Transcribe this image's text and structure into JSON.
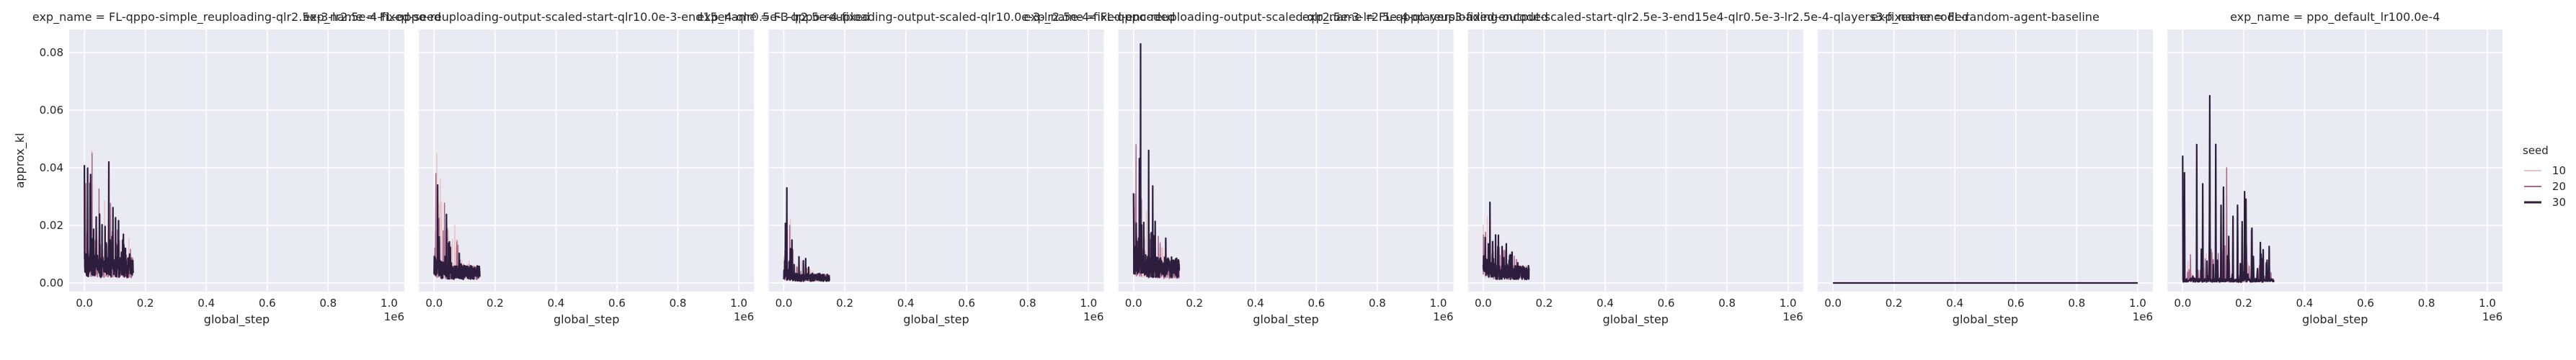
{
  "figure": {
    "ylabel": "approx_kl",
    "xlabel": "global_step",
    "x_offset_label": "1e6",
    "background": "#eaeaf2",
    "grid_color": "#ffffff"
  },
  "legend": {
    "title": "seed",
    "placement": "right",
    "entries": [
      {
        "label": "10",
        "color": "#e8c4c6"
      },
      {
        "label": "20",
        "color": "#a66a8f"
      },
      {
        "label": "30",
        "color": "#2d1e3e"
      }
    ]
  },
  "chart_data": [
    {
      "type": "line",
      "title": "exp_name = FL-qppo-simple_reuploading-qlr2.5e-3-lr2.5e-4-fixed-seed",
      "xlim": [
        -0.05,
        1.05
      ],
      "ylim": [
        -0.003,
        0.088
      ],
      "yticks": [
        "0.00",
        "0.02",
        "0.04",
        "0.06",
        "0.08"
      ],
      "xticks": [
        "0.0",
        "0.2",
        "0.4",
        "0.6",
        "0.8",
        "1.0"
      ],
      "spikes_max": [
        0.046,
        0.045,
        0.042
      ],
      "span": [
        0.0,
        0.16
      ],
      "decay": 0.3,
      "base": [
        0.006,
        0.006,
        0.006
      ]
    },
    {
      "type": "line",
      "title": "exp_name = FL-qppo-reuploading-output-scaled-start-qlr10.0e-3-end15e4-qlr0.5e-3-lr2.5e-4-fixed",
      "xlim": [
        -0.05,
        1.05
      ],
      "ylim": [
        -0.003,
        0.088
      ],
      "yticks": [
        "0.00",
        "0.02",
        "0.04",
        "0.06",
        "0.08"
      ],
      "xticks": [
        "0.0",
        "0.2",
        "0.4",
        "0.6",
        "0.8",
        "1.0"
      ],
      "spikes_max": [
        0.045,
        0.038,
        0.034
      ],
      "span": [
        0.0,
        0.15
      ],
      "decay": 0.7,
      "base": [
        0.004,
        0.004,
        0.004
      ]
    },
    {
      "type": "line",
      "title": "exp_name = FL-qppo-reuploading-output-scaled-qlr10.0e-3-lr2.5e-4-fixed-encoded",
      "xlim": [
        -0.05,
        1.05
      ],
      "ylim": [
        -0.003,
        0.088
      ],
      "yticks": [
        "0.00",
        "0.02",
        "0.04",
        "0.06",
        "0.08"
      ],
      "xticks": [
        "0.0",
        "0.2",
        "0.4",
        "0.6",
        "0.8",
        "1.0"
      ],
      "spikes_max": [
        0.022,
        0.02,
        0.033
      ],
      "span": [
        0.0,
        0.15
      ],
      "decay": 0.9,
      "base": [
        0.002,
        0.002,
        0.002
      ]
    },
    {
      "type": "line",
      "title": "exp_name = FL-qppo-reuploading-output-scaled-qlr2.5e-3-lr2.5e-4-qlayers3-fixed-encoded",
      "xlim": [
        -0.05,
        1.05
      ],
      "ylim": [
        -0.003,
        0.088
      ],
      "yticks": [
        "0.00",
        "0.02",
        "0.04",
        "0.06",
        "0.08"
      ],
      "xticks": [
        "0.0",
        "0.2",
        "0.4",
        "0.6",
        "0.8",
        "1.0"
      ],
      "spikes_max": [
        0.04,
        0.048,
        0.083
      ],
      "span": [
        0.0,
        0.15
      ],
      "decay": 0.7,
      "base": [
        0.005,
        0.005,
        0.006
      ]
    },
    {
      "type": "line",
      "title": "exp_name = FL-qppo-reuploading-output-scaled-start-qlr2.5e-3-end15e4-qlr0.5e-3-lr2.5e-4-qlayers3-fixed-encoded",
      "xlim": [
        -0.05,
        1.05
      ],
      "ylim": [
        -0.003,
        0.088
      ],
      "yticks": [
        "0.00",
        "0.02",
        "0.04",
        "0.06",
        "0.08"
      ],
      "xticks": [
        "0.0",
        "0.2",
        "0.4",
        "0.6",
        "0.8",
        "1.0"
      ],
      "spikes_max": [
        0.023,
        0.024,
        0.028
      ],
      "span": [
        0.0,
        0.15
      ],
      "decay": 0.6,
      "base": [
        0.004,
        0.004,
        0.004
      ]
    },
    {
      "type": "line",
      "title": "exp_name = FL-random-agent-baseline",
      "xlim": [
        -0.05,
        1.05
      ],
      "ylim": [
        -0.003,
        0.088
      ],
      "yticks": [
        "0.00",
        "0.02",
        "0.04",
        "0.06",
        "0.08"
      ],
      "xticks": [
        "0.0",
        "0.2",
        "0.4",
        "0.6",
        "0.8",
        "1.0"
      ],
      "spikes_max": [
        0.0,
        0.0,
        0.0
      ],
      "span": [
        0.0,
        1.0
      ],
      "decay": 0.0,
      "base": [
        0.0,
        0.0,
        0.0
      ]
    },
    {
      "type": "line",
      "title": "exp_name = ppo_default_lr100.0e-4",
      "xlim": [
        -0.05,
        1.05
      ],
      "ylim": [
        -0.003,
        0.088
      ],
      "yticks": [
        "0.00",
        "0.02",
        "0.04",
        "0.06",
        "0.08"
      ],
      "xticks": [
        "0.0",
        "0.2",
        "0.4",
        "0.6",
        "0.8",
        "1.0"
      ],
      "spikes_max": [
        0.02,
        0.04,
        0.065
      ],
      "span": [
        0.0,
        0.3
      ],
      "decay": 0.2,
      "base": [
        0.001,
        0.001,
        0.001
      ]
    }
  ]
}
